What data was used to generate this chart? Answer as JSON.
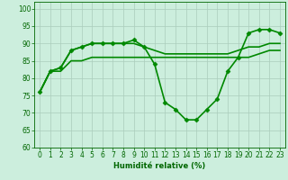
{
  "xlabel": "Humidité relative (%)",
  "background_color": "#cceedd",
  "grid_color": "#aaccbb",
  "line_color": "#008800",
  "xlim": [
    -0.5,
    23.5
  ],
  "ylim": [
    60,
    102
  ],
  "yticks": [
    60,
    65,
    70,
    75,
    80,
    85,
    90,
    95,
    100
  ],
  "xticks": [
    0,
    1,
    2,
    3,
    4,
    5,
    6,
    7,
    8,
    9,
    10,
    11,
    12,
    13,
    14,
    15,
    16,
    17,
    18,
    19,
    20,
    21,
    22,
    23
  ],
  "series": [
    {
      "x": [
        0,
        1,
        2,
        3,
        4,
        5,
        6,
        7,
        8,
        9,
        10,
        11,
        12,
        13,
        14,
        15,
        16,
        17,
        18,
        19,
        20,
        21,
        22,
        23
      ],
      "y": [
        76,
        82,
        82,
        85,
        85,
        86,
        86,
        86,
        86,
        86,
        86,
        86,
        86,
        86,
        86,
        86,
        86,
        86,
        86,
        86,
        86,
        87,
        88,
        88
      ],
      "marker": false,
      "linewidth": 1.2
    },
    {
      "x": [
        0,
        1,
        2,
        3,
        4,
        5,
        6,
        7,
        8,
        9,
        10,
        11,
        12,
        13,
        14,
        15,
        16,
        17,
        18,
        19,
        20,
        21,
        22,
        23
      ],
      "y": [
        76,
        82,
        83,
        88,
        89,
        90,
        90,
        90,
        90,
        90,
        89,
        88,
        87,
        87,
        87,
        87,
        87,
        87,
        87,
        88,
        89,
        89,
        90,
        90
      ],
      "marker": false,
      "linewidth": 1.2
    },
    {
      "x": [
        0,
        1,
        2,
        3,
        4,
        5,
        6,
        7,
        8,
        9,
        10,
        11,
        12,
        13,
        14,
        15,
        16,
        17,
        18,
        19,
        20,
        21,
        22,
        23
      ],
      "y": [
        76,
        82,
        83,
        88,
        89,
        90,
        90,
        90,
        90,
        91,
        89,
        84,
        73,
        71,
        68,
        68,
        71,
        74,
        82,
        86,
        93,
        94,
        94,
        93
      ],
      "marker": true,
      "linewidth": 1.2
    }
  ]
}
